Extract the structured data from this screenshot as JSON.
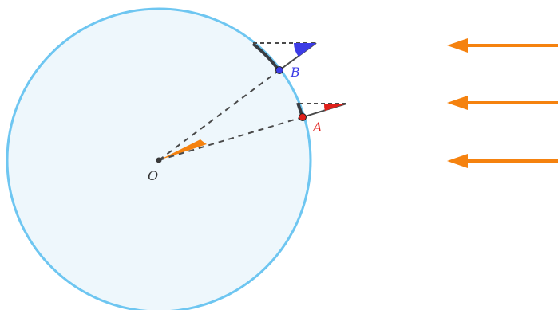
{
  "labels": {
    "center": "O",
    "point_a": "A",
    "point_b": "B"
  },
  "colors": {
    "disk_fill": "#eef7fc",
    "disk_stroke": "#6ec6f1",
    "arrow": "#f5820f",
    "center_angle": "#f5820f",
    "point_a": "#e0201b",
    "point_b": "#3c3ce6",
    "line": "#4a4a4a"
  },
  "incoming_rays": {
    "count": 3,
    "direction": "right-to-left"
  }
}
